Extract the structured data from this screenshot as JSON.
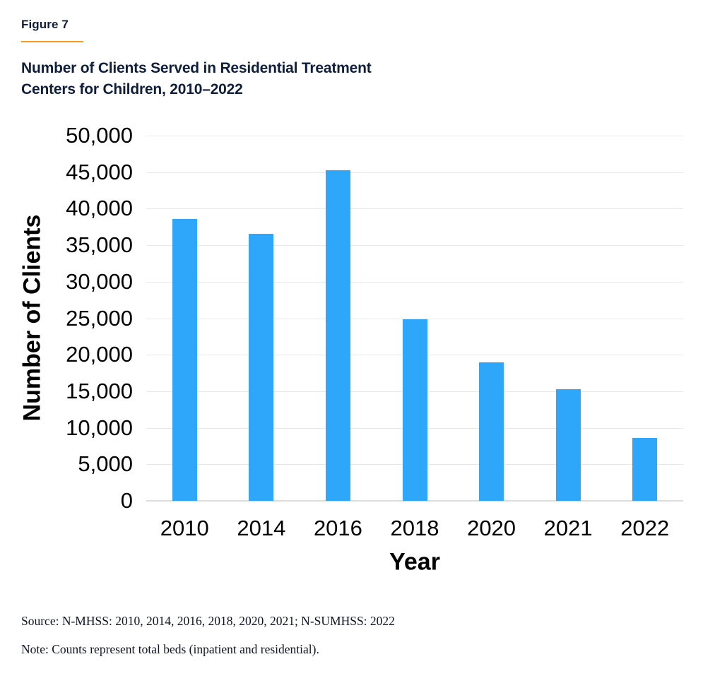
{
  "figure": {
    "label": "Figure 7",
    "title_lines": [
      "Number of Clients Served in Residential Treatment",
      "Centers for Children, 2010–2022"
    ]
  },
  "chart_data": {
    "type": "bar",
    "title": "Number of Clients Served in Residential Treatment Centers for Children, 2010–2022",
    "categories": [
      "2010",
      "2014",
      "2016",
      "2018",
      "2020",
      "2021",
      "2022"
    ],
    "values": [
      38600,
      36600,
      45300,
      24900,
      19000,
      15300,
      8600
    ],
    "xlabel": "Year",
    "ylabel": "Number of Clients",
    "ylim": [
      0,
      50000
    ],
    "ytick_step": 5000,
    "ytick_labels": [
      "0",
      "5,000",
      "10,000",
      "15,000",
      "20,000",
      "25,000",
      "30,000",
      "35,000",
      "40,000",
      "45,000",
      "50,000"
    ],
    "grid": "horizontal",
    "legend": "none",
    "bar_color": "#2EA7FA"
  },
  "footnotes": {
    "source": "Source: N-MHSS: 2010, 2014, 2016, 2018, 2020, 2021; N-SUMHSS: 2022",
    "note": "Note: Counts represent total beds (inpatient and residential)."
  },
  "colors": {
    "heading_navy": "#0F1E3C",
    "accent_orange": "#F79B22",
    "bar_blue": "#2EA7FA",
    "gridline_gray": "#E8E8E8"
  }
}
